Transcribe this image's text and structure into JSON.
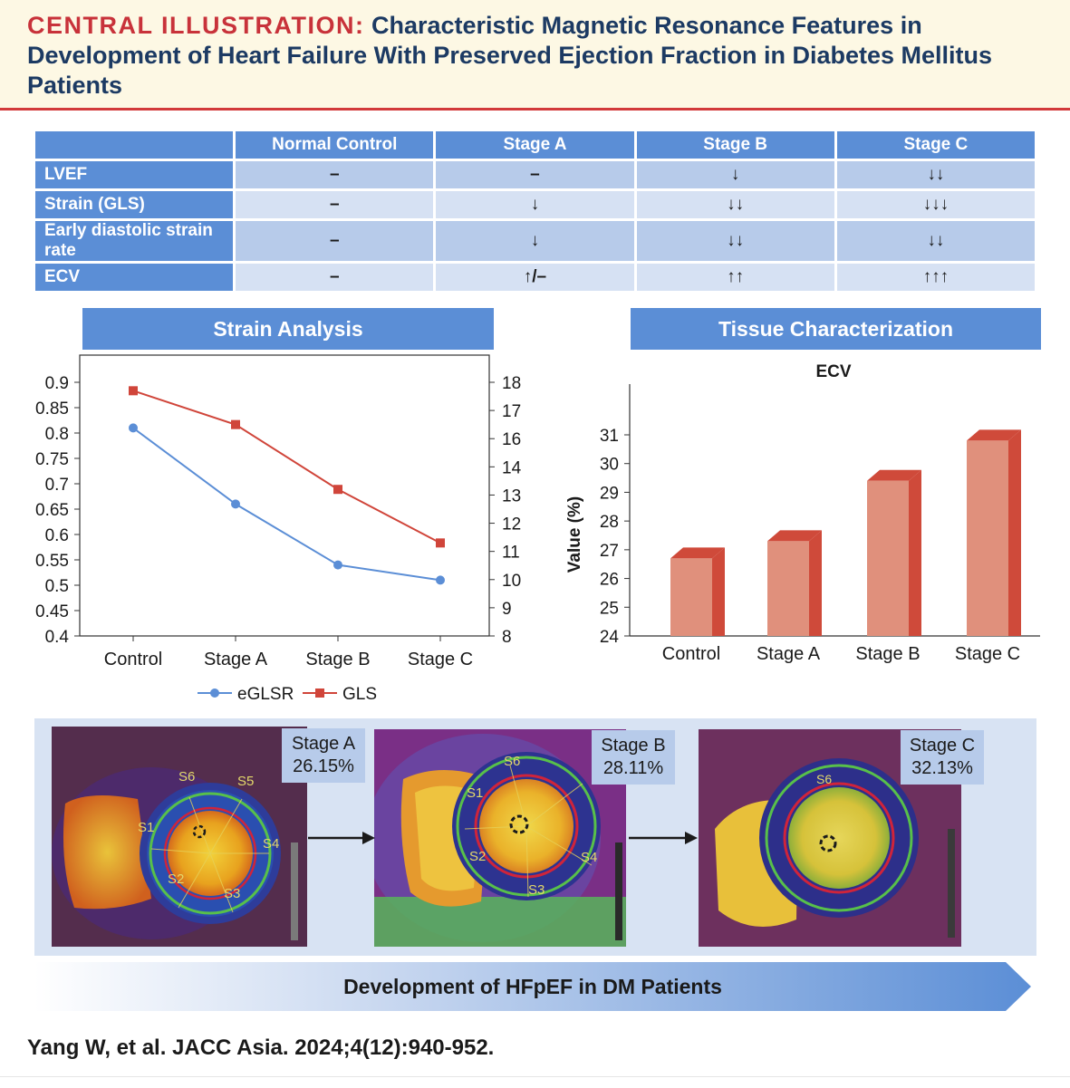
{
  "header": {
    "lead": "CENTRAL ILLUSTRATION:",
    "title": "Characteristic Magnetic Resonance Features in Development of Heart Failure With Preserved Ejection Fraction in Diabetes Mellitus Patients"
  },
  "table": {
    "columns": [
      "",
      "Normal Control",
      "Stage A",
      "Stage B",
      "Stage C"
    ],
    "rows": [
      {
        "label": "LVEF",
        "values": [
          "–",
          "–",
          "↓",
          "↓↓"
        ]
      },
      {
        "label": "Strain (GLS)",
        "values": [
          "–",
          "↓",
          "↓↓",
          "↓↓↓"
        ]
      },
      {
        "label": "Early diastolic strain rate",
        "values": [
          "–",
          "↓",
          "↓↓",
          "↓↓"
        ]
      },
      {
        "label": "ECV",
        "values": [
          "–",
          "↑/–",
          "↑↑",
          "↑↑↑"
        ]
      }
    ]
  },
  "panels": {
    "strain": "Strain Analysis",
    "tissue": "Tissue Characterization"
  },
  "chart_data": [
    {
      "type": "line",
      "categories": [
        "Control",
        "Stage A",
        "Stage B",
        "Stage C"
      ],
      "series": [
        {
          "name": "eGLSR",
          "axis": "left",
          "color": "#5b8ed6",
          "values": [
            0.81,
            0.66,
            0.54,
            0.51
          ]
        },
        {
          "name": "GLS",
          "axis": "right",
          "color": "#d0453a",
          "values": [
            17.7,
            16.5,
            13.2,
            11.3
          ]
        }
      ],
      "y_left": {
        "ticks": [
          "0.9",
          "0.85",
          "0.8",
          "0.75",
          "0.7",
          "0.65",
          "0.6",
          "0.55",
          "0.5",
          "0.45",
          "0.4"
        ],
        "range": [
          0.4,
          0.9
        ]
      },
      "y_right": {
        "ticks": [
          "18",
          "17",
          "16",
          "14",
          "13",
          "12",
          "11",
          "10",
          "9",
          "8"
        ]
      },
      "legend": "bottom"
    },
    {
      "type": "bar",
      "title": "ECV",
      "ylabel": "Value (%)",
      "categories": [
        "Control",
        "Stage A",
        "Stage B",
        "Stage C"
      ],
      "values": [
        26.7,
        27.3,
        29.4,
        30.8
      ],
      "ylim": [
        24,
        31
      ],
      "yticks": [
        "31",
        "30",
        "29",
        "28",
        "27",
        "26",
        "25",
        "24"
      ],
      "color": "#e0907c",
      "side_color": "#cf4a3a"
    }
  ],
  "images": [
    {
      "stage": "Stage A",
      "value": "26.15%"
    },
    {
      "stage": "Stage B",
      "value": "28.11%"
    },
    {
      "stage": "Stage C",
      "value": "32.13%"
    }
  ],
  "segments": {
    "a": [
      "S6",
      "S5",
      "S1",
      "S4",
      "S2",
      "S3"
    ],
    "b": [
      "S6",
      "S1",
      "S2",
      "S4",
      "S3"
    ],
    "c": [
      "S6"
    ]
  },
  "banner": "Development of HFpEF in DM Patients",
  "citation": "Yang W, et al. JACC Asia. 2024;4(12):940-952."
}
